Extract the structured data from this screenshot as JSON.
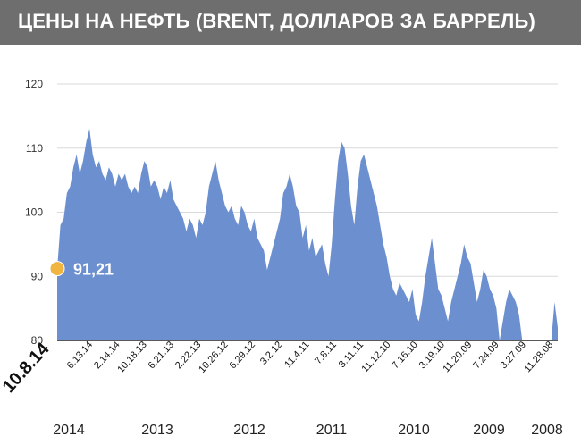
{
  "title": "ЦЕНЫ НА НЕФТЬ (BRENT, ДОЛЛАРОВ ЗА БАРРЕЛЬ)",
  "colors": {
    "header": "#6e6e6e",
    "area": "#6c8fcf",
    "highlight": "#f0b441",
    "grid": "#d9d9d9"
  },
  "chart_data": {
    "type": "area",
    "title": "ЦЕНЫ НА НЕФТЬ (BRENT, ДОЛЛАРОВ ЗА БАРРЕЛЬ)",
    "x_order": "newest-to-oldest (left to right)",
    "ylim": [
      80,
      120
    ],
    "yticks": [
      80,
      90,
      100,
      110,
      120
    ],
    "grid": true,
    "x_tick_labels": [
      "10.8.14",
      "6.13.14",
      "2.14.14",
      "10.18.13",
      "6.21.13",
      "2.22.13",
      "10.26.12",
      "6.29.12",
      "3.2.12",
      "11.4.11",
      "7.8.11",
      "3.11.11",
      "11.12.10",
      "7.16.10",
      "3.19.10",
      "11.20.09",
      "7.24.09",
      "3.27.09",
      "11.28.08"
    ],
    "year_labels": [
      "2014",
      "2013",
      "2012",
      "2011",
      "2010",
      "2009",
      "2008"
    ],
    "highlight": {
      "date": "10.8.14",
      "label": "91,21",
      "value": 91.21
    },
    "values": [
      91.21,
      98,
      99,
      103,
      104,
      107,
      109,
      106,
      108,
      111,
      113,
      109,
      107,
      108,
      106,
      105,
      107,
      106,
      104,
      106,
      105,
      106,
      104,
      103,
      104,
      103,
      106,
      108,
      107,
      104,
      105,
      104,
      102,
      104,
      103,
      105,
      102,
      101,
      100,
      99,
      97,
      99,
      98,
      96,
      99,
      98,
      100,
      104,
      106,
      108,
      105,
      103,
      101,
      100,
      101,
      99,
      98,
      101,
      100,
      98,
      97,
      99,
      96,
      95,
      94,
      91,
      93,
      95,
      97,
      99,
      103,
      104,
      106,
      104,
      101,
      100,
      96,
      98,
      94,
      96,
      93,
      94,
      95,
      92,
      90,
      95,
      102,
      108,
      111,
      110,
      106,
      101,
      98,
      104,
      108,
      109,
      107,
      105,
      103,
      101,
      98,
      95,
      93,
      90,
      88,
      87,
      89,
      88,
      87,
      86,
      88,
      84,
      83,
      86,
      90,
      93,
      96,
      92,
      88,
      87,
      85,
      83,
      86,
      88,
      90,
      92,
      95,
      93,
      92,
      89,
      86,
      88,
      91,
      90,
      88,
      87,
      85,
      80,
      83,
      86,
      88,
      87,
      86,
      84,
      80,
      80,
      80,
      80,
      80,
      80,
      80,
      80,
      80,
      80,
      86,
      82
    ]
  }
}
